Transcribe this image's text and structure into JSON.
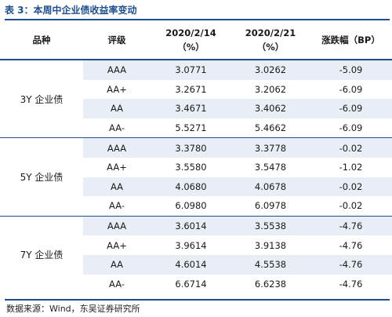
{
  "title": "表 3：本周中企业债收益率变动",
  "columns": [
    "品种",
    "评级",
    "2020/2/14\n（%）",
    "2020/2/21\n（%）",
    "涨跌幅（BP）"
  ],
  "groups": [
    {
      "name": "3Y 企业债",
      "rows": [
        {
          "rating": "AAA",
          "v1": "3.0771",
          "v2": "3.0262",
          "chg": "-5.09"
        },
        {
          "rating": "AA+",
          "v1": "3.2671",
          "v2": "3.2062",
          "chg": "-6.09"
        },
        {
          "rating": "AA",
          "v1": "3.4671",
          "v2": "3.4062",
          "chg": "-6.09"
        },
        {
          "rating": "AA-",
          "v1": "5.5271",
          "v2": "5.4662",
          "chg": "-6.09"
        }
      ]
    },
    {
      "name": "5Y 企业债",
      "rows": [
        {
          "rating": "AAA",
          "v1": "3.3780",
          "v2": "3.3778",
          "chg": "-0.02"
        },
        {
          "rating": "AA+",
          "v1": "3.5580",
          "v2": "3.5478",
          "chg": "-1.02"
        },
        {
          "rating": "AA",
          "v1": "4.0680",
          "v2": "4.0678",
          "chg": "-0.02"
        },
        {
          "rating": "AA-",
          "v1": "6.0980",
          "v2": "6.0978",
          "chg": "-0.02"
        }
      ]
    },
    {
      "name": "7Y 企业债",
      "rows": [
        {
          "rating": "AAA",
          "v1": "3.6014",
          "v2": "3.5538",
          "chg": "-4.76"
        },
        {
          "rating": "AA+",
          "v1": "3.9614",
          "v2": "3.9138",
          "chg": "-4.76"
        },
        {
          "rating": "AA",
          "v1": "4.6014",
          "v2": "4.5538",
          "chg": "-4.76"
        },
        {
          "rating": "AA-",
          "v1": "6.6714",
          "v2": "6.6238",
          "chg": "-4.76"
        }
      ]
    }
  ],
  "source": "数据来源：Wind，东吴证券研究所",
  "colors": {
    "accent": "#1f4e8c",
    "band": "#e9eef6"
  }
}
